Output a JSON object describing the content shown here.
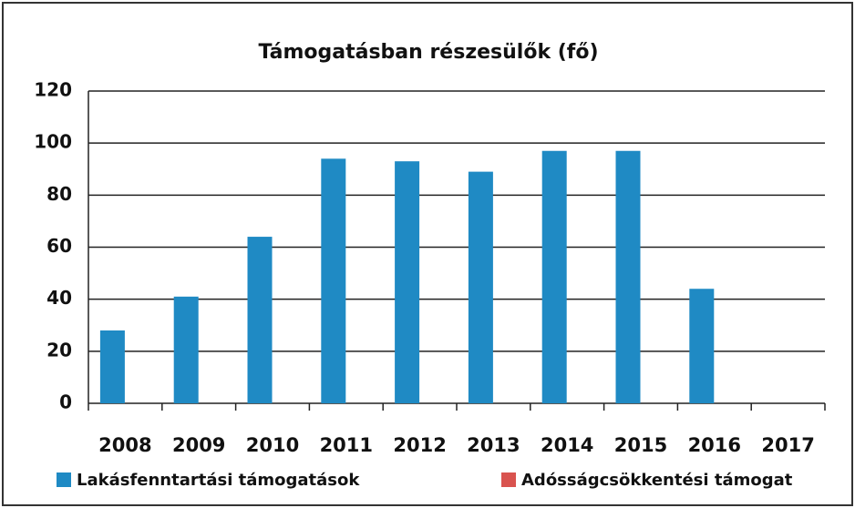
{
  "chart_data": {
    "type": "bar",
    "title": "Támogatásban részesülők (fő)",
    "categories": [
      "2008",
      "2009",
      "2010",
      "2011",
      "2012",
      "2013",
      "2014",
      "2015",
      "2016",
      "2017"
    ],
    "series": [
      {
        "name": "Lakásfenntartási támogatások",
        "color": "#1f8ac4",
        "values": [
          28,
          41,
          64,
          94,
          93,
          89,
          97,
          97,
          44,
          null
        ]
      },
      {
        "name": "Adósságcsökkentési támogat",
        "color": "#d9534f",
        "values": [
          null,
          null,
          null,
          null,
          null,
          null,
          null,
          null,
          null,
          null
        ]
      }
    ],
    "ylim": [
      0,
      120
    ],
    "yticks": [
      0,
      20,
      40,
      60,
      80,
      100,
      120
    ],
    "grid": true
  }
}
